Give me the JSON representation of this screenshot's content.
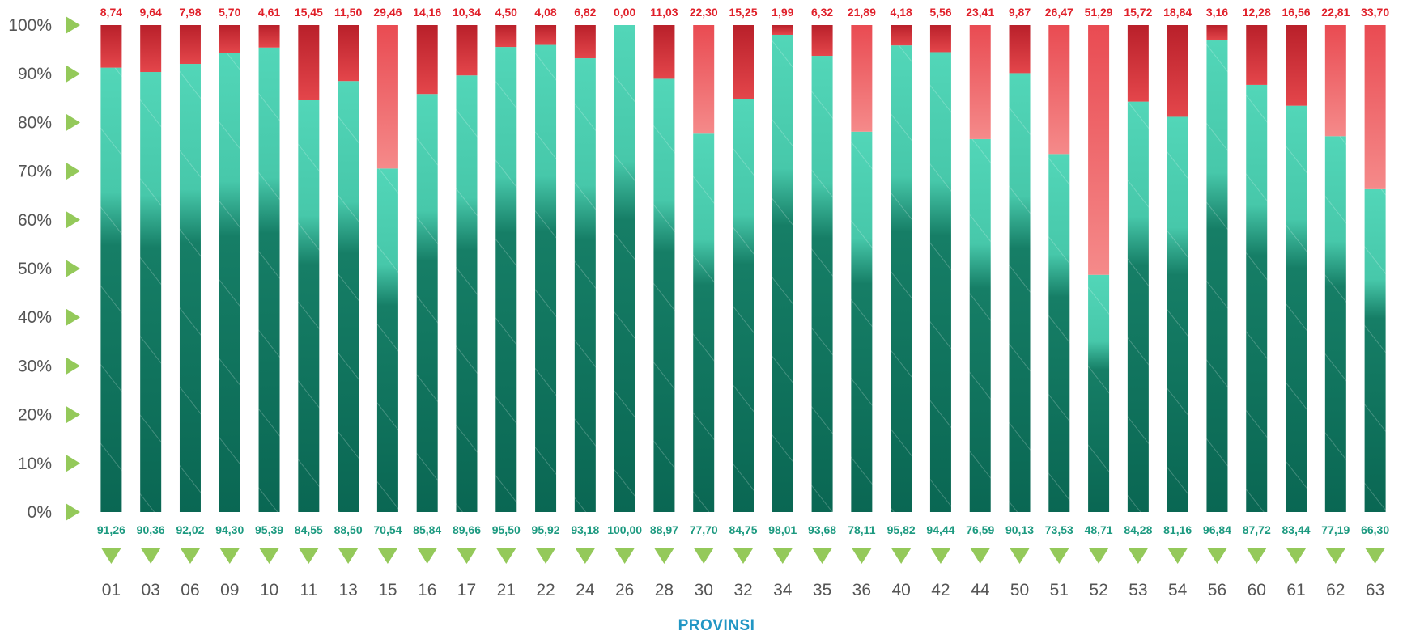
{
  "chart_data": {
    "type": "bar",
    "stacked": true,
    "xlabel": "PROVINSI",
    "ylim": [
      0,
      100
    ],
    "yticks": [
      "0%",
      "10%",
      "20%",
      "30%",
      "40%",
      "50%",
      "60%",
      "70%",
      "80%",
      "90%",
      "100%"
    ],
    "categories": [
      "01",
      "03",
      "06",
      "09",
      "10",
      "11",
      "13",
      "15",
      "16",
      "17",
      "21",
      "22",
      "24",
      "26",
      "28",
      "30",
      "32",
      "34",
      "35",
      "36",
      "40",
      "42",
      "44",
      "50",
      "51",
      "52",
      "53",
      "54",
      "56",
      "60",
      "61",
      "62",
      "63"
    ],
    "series": [
      {
        "values": [
          91.26,
          90.36,
          92.02,
          94.3,
          95.39,
          84.55,
          88.5,
          70.54,
          85.84,
          89.66,
          95.5,
          95.92,
          93.18,
          100.0,
          88.97,
          77.7,
          84.75,
          98.01,
          93.68,
          78.11,
          95.82,
          94.44,
          76.59,
          90.13,
          73.53,
          48.71,
          84.28,
          81.16,
          96.84,
          87.72,
          83.44,
          77.19,
          66.3
        ],
        "labels": [
          "91,26",
          "90,36",
          "92,02",
          "94,30",
          "95,39",
          "84,55",
          "88,50",
          "70,54",
          "85,84",
          "89,66",
          "95,50",
          "95,92",
          "93,18",
          "100,00",
          "88,97",
          "77,70",
          "84,75",
          "98,01",
          "93,68",
          "78,11",
          "95,82",
          "94,44",
          "76,59",
          "90,13",
          "73,53",
          "48,71",
          "84,28",
          "81,16",
          "96,84",
          "87,72",
          "83,44",
          "77,19",
          "66,30"
        ]
      },
      {
        "values": [
          8.74,
          9.64,
          7.98,
          5.7,
          4.61,
          15.45,
          11.5,
          29.46,
          14.16,
          10.34,
          4.5,
          4.08,
          6.82,
          0.0,
          11.03,
          22.3,
          15.25,
          1.99,
          6.32,
          21.89,
          4.18,
          5.56,
          23.41,
          9.87,
          26.47,
          51.29,
          15.72,
          18.84,
          3.16,
          12.28,
          16.56,
          22.81,
          33.7
        ],
        "labels": [
          "8,74",
          "9,64",
          "7,98",
          "5,70",
          "4,61",
          "15,45",
          "11,50",
          "29,46",
          "14,16",
          "10,34",
          "4,50",
          "4,08",
          "6,82",
          "0,00",
          "11,03",
          "22,30",
          "15,25",
          "1,99",
          "6,32",
          "21,89",
          "4,18",
          "5,56",
          "23,41",
          "9,87",
          "26,47",
          "51,29",
          "15,72",
          "18,84",
          "3,16",
          "12,28",
          "16,56",
          "22,81",
          "33,70"
        ]
      }
    ],
    "colors": {
      "series_1_upper": "#52d6b8",
      "series_1_lower": "#0c6e58",
      "series_2": "#d8333a",
      "series_2_light": "#ef6b6b",
      "series_1_label": "#1c9a80",
      "series_2_label": "#e0202a",
      "marker": "#94c95a",
      "axis_title": "#2196c4",
      "tick": "#555555"
    }
  }
}
